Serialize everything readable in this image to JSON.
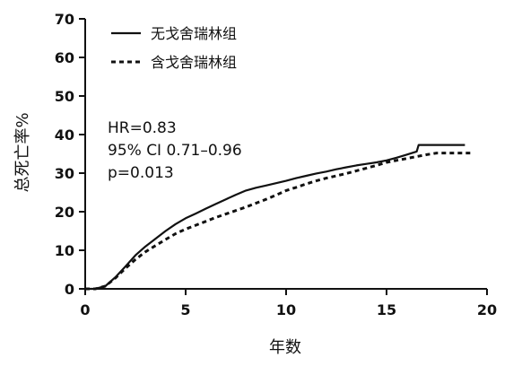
{
  "chart_data": {
    "type": "line",
    "xlabel": "年数",
    "ylabel": "总死亡率%",
    "xlim": [
      0,
      20
    ],
    "ylim": [
      0,
      70
    ],
    "xticks": [
      "0",
      "5",
      "10",
      "15",
      "20"
    ],
    "yticks": [
      "0",
      "10",
      "20",
      "30",
      "40",
      "50",
      "60",
      "70"
    ],
    "grid": false,
    "legend_position": "top-left",
    "series": [
      {
        "name": "无戈舍瑞林组",
        "style": "solid",
        "x": [
          0,
          0.5,
          1,
          1.5,
          2,
          2.5,
          3,
          3.5,
          4,
          4.5,
          5,
          5.5,
          6,
          6.5,
          7,
          7.5,
          8,
          8.5,
          9,
          9.5,
          10,
          10.5,
          11,
          11.5,
          12,
          12.5,
          13,
          13.5,
          14,
          14.5,
          15,
          15.5,
          16,
          16.5,
          16.6,
          17,
          18,
          18.9
        ],
        "y": [
          0,
          0,
          0.7,
          3,
          5.8,
          8.7,
          11,
          13,
          15,
          16.8,
          18.3,
          19.5,
          20.8,
          22,
          23.2,
          24.4,
          25.5,
          26.2,
          26.8,
          27.4,
          28,
          28.7,
          29.3,
          29.9,
          30.4,
          31,
          31.5,
          32,
          32.4,
          32.8,
          33.3,
          34,
          34.8,
          35.6,
          37.3,
          37.3,
          37.3,
          37.3
        ]
      },
      {
        "name": "含戈舍瑞林组",
        "style": "dashed",
        "x": [
          0,
          0.5,
          1,
          1.5,
          2,
          2.5,
          3,
          3.5,
          4,
          4.5,
          5,
          5.5,
          6,
          6.5,
          7,
          7.5,
          8,
          8.5,
          9,
          9.5,
          10,
          10.5,
          11,
          11.5,
          12,
          12.5,
          13,
          13.5,
          14,
          14.5,
          15,
          15.5,
          16,
          16.5,
          17,
          17.5,
          18,
          18.5,
          19.3
        ],
        "y": [
          0,
          0,
          0.7,
          2.8,
          5.3,
          7.6,
          9.6,
          11.2,
          12.8,
          14.3,
          15.5,
          16.5,
          17.5,
          18.5,
          19.4,
          20.3,
          21.2,
          22.2,
          23.2,
          24.3,
          25.5,
          26.3,
          27.2,
          28,
          28.7,
          29.3,
          29.9,
          30.6,
          31.3,
          32,
          32.8,
          33.3,
          33.8,
          34.3,
          34.8,
          35.2,
          35.2,
          35.2,
          35.2
        ]
      }
    ],
    "annotations": [
      "HR=0.83",
      "95% CI 0.71–0.96",
      "p=0.013"
    ]
  }
}
